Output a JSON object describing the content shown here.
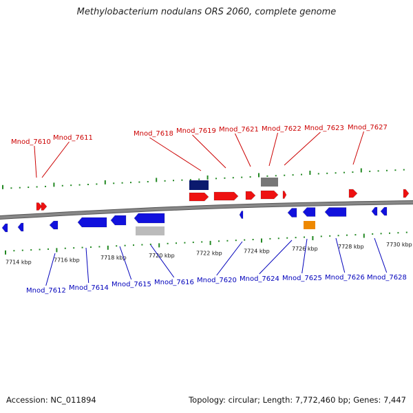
{
  "title": "Methylobacterium nodulans ORS 2060, complete genome",
  "footer": {
    "accession": "Accession: NC_011894",
    "summary": "Topology: circular; Length: 7,772,460 bp; Genes: 7,447"
  },
  "colors": {
    "forward": "#ee1111",
    "reverse": "#1111dd",
    "label_forward": "#cc0000",
    "label_reverse": "#0000bb",
    "backbone": "#888888",
    "ticks": "#228822",
    "navy": "#0b1a6e",
    "gray": "#777777",
    "light_gray": "#bbbbbb",
    "orange": "#ee8800"
  },
  "scale_labels": [
    "7714 kbp",
    "7716 kbp",
    "7718 kbp",
    "7720 kbp",
    "7722 kbp",
    "7724 kbp",
    "7726 kbp",
    "7728 kbp",
    "7730 kbp"
  ],
  "forward_genes": [
    "Mnod_7610",
    "Mnod_7611",
    "Mnod_7618",
    "Mnod_7619",
    "Mnod_7621",
    "Mnod_7622",
    "Mnod_7623",
    "Mnod_7627"
  ],
  "reverse_genes": [
    "Mnod_7612",
    "Mnod_7614",
    "Mnod_7615",
    "Mnod_7616",
    "Mnod_7620",
    "Mnod_7624",
    "Mnod_7625",
    "Mnod_7626",
    "Mnod_7628"
  ]
}
